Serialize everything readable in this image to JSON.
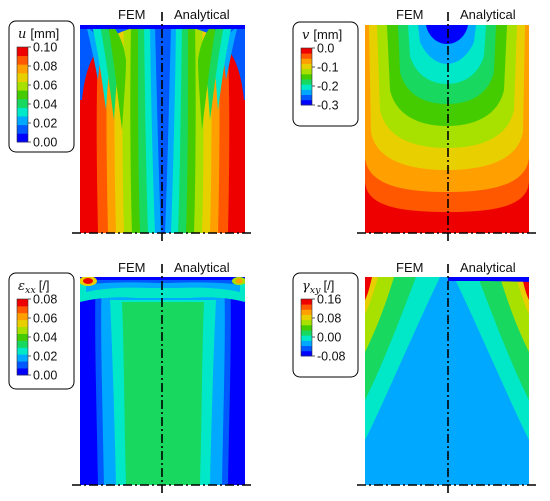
{
  "panels": [
    {
      "id": "u",
      "header_left": "FEM",
      "header_right": "Analytical",
      "legend_symbol": "u",
      "legend_sub": "",
      "legend_unit": "[mm]",
      "legend_ticks": [
        "0.10",
        "0.08",
        "0.06",
        "0.04",
        "0.02",
        "0.00"
      ],
      "legend_range": [
        0.0,
        0.1
      ]
    },
    {
      "id": "v",
      "header_left": "FEM",
      "header_right": "Analytical",
      "legend_symbol": "v",
      "legend_sub": "",
      "legend_unit": "[mm]",
      "legend_ticks": [
        "0.0",
        "-0.1",
        "-0.2",
        "-0.3"
      ],
      "legend_range": [
        -0.35,
        0.0
      ]
    },
    {
      "id": "exx",
      "header_left": "FEM",
      "header_right": "Analytical",
      "legend_symbol": "ε",
      "legend_sub": "xx",
      "legend_unit": "[/]",
      "legend_ticks": [
        "0.08",
        "0.06",
        "0.04",
        "0.02",
        "0.00"
      ],
      "legend_range": [
        0.0,
        0.08
      ]
    },
    {
      "id": "gxy",
      "header_left": "FEM",
      "header_right": "Analytical",
      "legend_symbol": "γ",
      "legend_sub": "xy",
      "legend_unit": "[/]",
      "legend_ticks": [
        "0.16",
        "0.08",
        "0.00",
        "-0.08"
      ],
      "legend_range": [
        -0.08,
        0.16
      ]
    }
  ],
  "colormap": [
    "#0000ff",
    "#0058ff",
    "#00a8ff",
    "#00e8c8",
    "#18d860",
    "#44cc00",
    "#a8e000",
    "#e8d000",
    "#ffa000",
    "#ff5800",
    "#ee0000"
  ]
}
